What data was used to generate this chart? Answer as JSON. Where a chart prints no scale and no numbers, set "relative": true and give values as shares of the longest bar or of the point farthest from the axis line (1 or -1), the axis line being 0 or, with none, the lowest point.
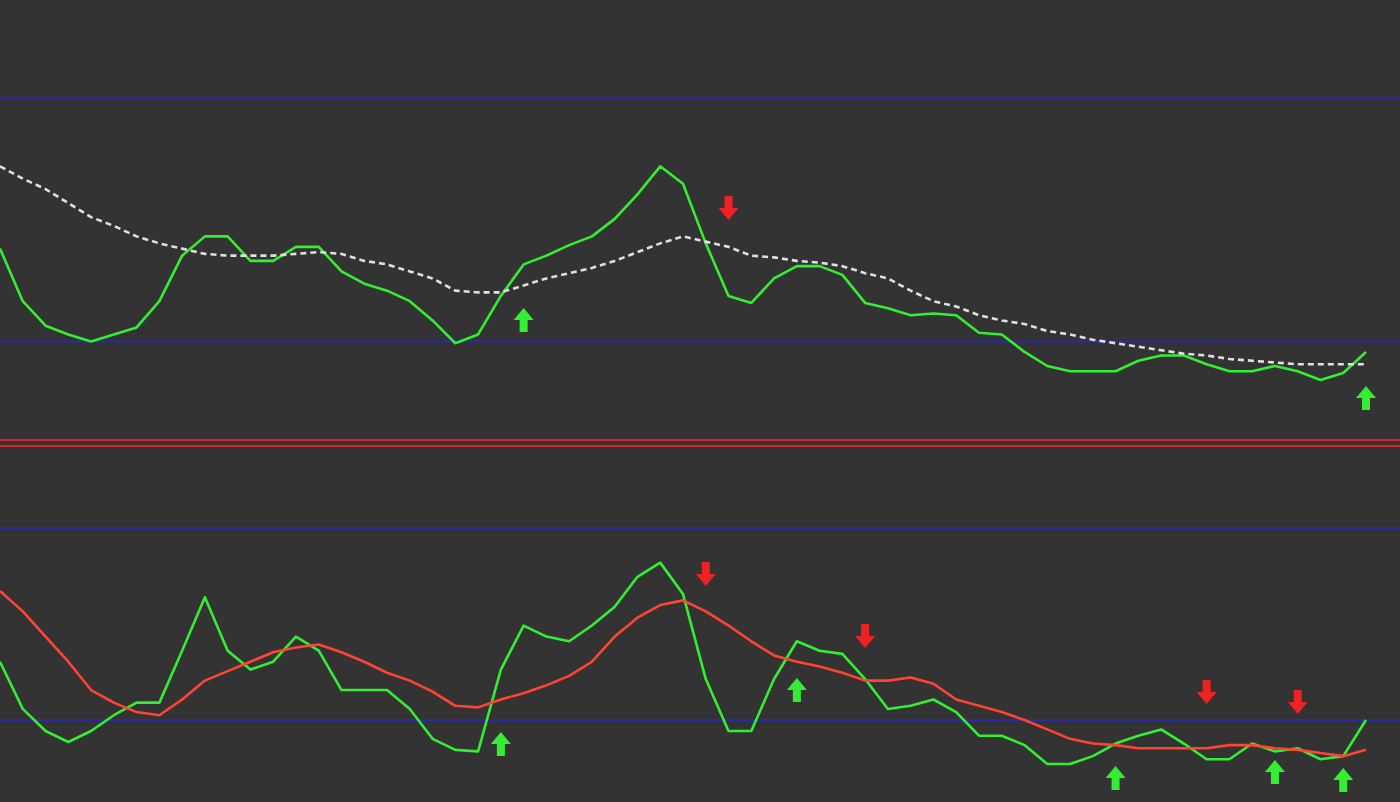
{
  "chart_data": [
    {
      "type": "line",
      "relative": true,
      "categories": [
        null,
        null,
        null,
        null,
        null,
        null,
        null,
        null,
        null,
        null,
        null,
        null,
        null,
        null,
        null,
        null,
        null,
        null,
        null,
        null,
        null,
        null,
        null,
        null,
        null,
        null,
        null,
        null,
        null,
        null,
        null,
        null,
        null,
        null,
        null,
        null,
        null,
        null,
        null,
        null,
        null,
        null,
        null,
        null,
        null,
        null,
        null,
        null,
        null,
        null,
        null,
        null,
        null,
        null,
        null,
        null,
        null,
        null,
        null,
        null,
        null
      ],
      "series": [
        {
          "color": "#33ee33",
          "values": [
            0.53,
            0.23,
            0.09,
            0.04,
            0,
            0.04,
            0.08,
            0.23,
            0.49,
            0.6,
            0.6,
            0.46,
            0.46,
            0.54,
            0.54,
            0.4,
            0.33,
            0.29,
            0.23,
            0.12,
            -0.01,
            0.04,
            0.26,
            0.44,
            0.49,
            0.55,
            0.6,
            0.7,
            0.84,
            1,
            0.9,
            0.56,
            0.26,
            0.22,
            0.36,
            0.43,
            0.43,
            0.38,
            0.22,
            0.19,
            0.15,
            0.16,
            0.15,
            0.05,
            0.04,
            -0.06,
            -0.14,
            -0.17,
            -0.17,
            -0.17,
            -0.11,
            -0.08,
            -0.08,
            -0.13,
            -0.17,
            -0.17,
            -0.14,
            -0.17,
            -0.22,
            -0.18,
            -0.06
          ]
        },
        {
          "color": "#e0e0e0",
          "line_style": "dashed",
          "values": [
            1,
            0.93,
            0.87,
            0.79,
            0.71,
            0.66,
            0.6,
            0.56,
            0.53,
            0.5,
            0.49,
            0.49,
            0.49,
            0.5,
            0.51,
            0.5,
            0.46,
            0.44,
            0.4,
            0.36,
            0.29,
            0.28,
            0.28,
            0.32,
            0.36,
            0.39,
            0.42,
            0.46,
            0.51,
            0.56,
            0.6,
            0.57,
            0.54,
            0.49,
            0.48,
            0.46,
            0.45,
            0.43,
            0.39,
            0.36,
            0.29,
            0.23,
            0.2,
            0.15,
            0.12,
            0.1,
            0.06,
            0.04,
            0.01,
            -0.01,
            -0.03,
            -0.05,
            -0.07,
            -0.08,
            -0.1,
            -0.11,
            -0.12,
            -0.13,
            -0.13,
            -0.13,
            -0.13
          ]
        }
      ],
      "ref_lines": [
        {
          "axis": "y",
          "value": 1.39,
          "color": "#2a2aa8"
        },
        {
          "axis": "y",
          "value": 0,
          "color": "#2a2aa8"
        }
      ]
    },
    {
      "type": "line",
      "relative": true,
      "categories": [
        null,
        null,
        null,
        null,
        null,
        null,
        null,
        null,
        null,
        null,
        null,
        null,
        null,
        null,
        null,
        null,
        null,
        null,
        null,
        null,
        null,
        null,
        null,
        null,
        null,
        null,
        null,
        null,
        null,
        null,
        null,
        null,
        null,
        null,
        null,
        null,
        null,
        null,
        null,
        null,
        null,
        null,
        null,
        null,
        null,
        null,
        null,
        null,
        null,
        null,
        null,
        null,
        null,
        null,
        null,
        null,
        null,
        null,
        null,
        null,
        null
      ],
      "series": [
        {
          "color": "#33ee33",
          "values": [
            0.37,
            0.07,
            -0.07,
            -0.14,
            -0.07,
            0.03,
            0.11,
            0.11,
            0.44,
            0.78,
            0.44,
            0.32,
            0.37,
            0.53,
            0.44,
            0.19,
            0.19,
            0.19,
            0.07,
            -0.12,
            -0.19,
            -0.2,
            0.32,
            0.6,
            0.53,
            0.5,
            0.6,
            0.72,
            0.91,
            1,
            0.8,
            0.26,
            -0.07,
            -0.07,
            0.26,
            0.5,
            0.44,
            0.42,
            0.26,
            0.07,
            0.09,
            0.13,
            0.05,
            -0.1,
            -0.1,
            -0.16,
            -0.28,
            -0.28,
            -0.23,
            -0.15,
            -0.1,
            -0.06,
            -0.15,
            -0.25,
            -0.25,
            -0.15,
            -0.2,
            -0.18,
            -0.25,
            -0.23,
            0
          ]
        },
        {
          "color": "#ff4433",
          "values": [
            0.82,
            0.69,
            0.53,
            0.37,
            0.19,
            0.11,
            0.05,
            0.03,
            0.13,
            0.25,
            0.31,
            0.37,
            0.43,
            0.46,
            0.48,
            0.43,
            0.37,
            0.3,
            0.25,
            0.18,
            0.09,
            0.08,
            0.13,
            0.17,
            0.22,
            0.28,
            0.37,
            0.53,
            0.65,
            0.73,
            0.76,
            0.69,
            0.6,
            0.5,
            0.41,
            0.37,
            0.34,
            0.3,
            0.25,
            0.25,
            0.27,
            0.23,
            0.13,
            0.09,
            0.05,
            0,
            -0.06,
            -0.12,
            -0.15,
            -0.16,
            -0.18,
            -0.18,
            -0.18,
            -0.18,
            -0.16,
            -0.16,
            -0.18,
            -0.19,
            -0.21,
            -0.23,
            -0.19
          ]
        }
      ],
      "ref_lines": [
        {
          "axis": "y",
          "value": 1.22,
          "color": "#2a2aa8"
        },
        {
          "axis": "y",
          "value": 0,
          "color": "#2a2aa8"
        }
      ]
    }
  ]
}
